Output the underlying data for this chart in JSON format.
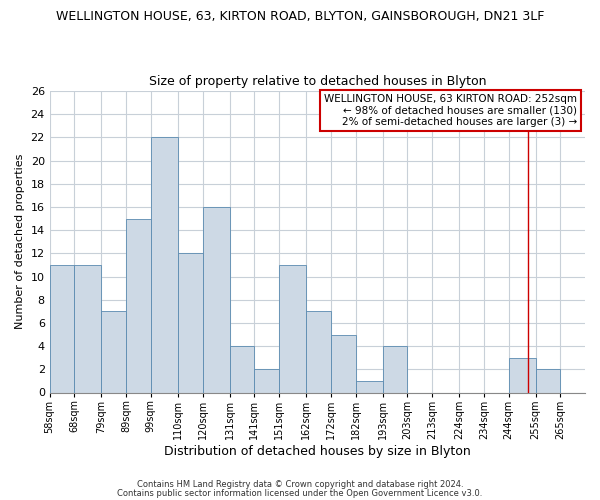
{
  "title_line1": "WELLINGTON HOUSE, 63, KIRTON ROAD, BLYTON, GAINSBOROUGH, DN21 3LF",
  "title_line2": "Size of property relative to detached houses in Blyton",
  "xlabel": "Distribution of detached houses by size in Blyton",
  "ylabel": "Number of detached properties",
  "bin_labels": [
    "58sqm",
    "68sqm",
    "79sqm",
    "89sqm",
    "99sqm",
    "110sqm",
    "120sqm",
    "131sqm",
    "141sqm",
    "151sqm",
    "162sqm",
    "172sqm",
    "182sqm",
    "193sqm",
    "203sqm",
    "213sqm",
    "224sqm",
    "234sqm",
    "244sqm",
    "255sqm",
    "265sqm"
  ],
  "bar_heights": [
    11,
    11,
    7,
    15,
    22,
    12,
    16,
    4,
    2,
    11,
    7,
    5,
    1,
    4,
    0,
    0,
    0,
    0,
    3,
    2,
    0
  ],
  "bar_color": "#cdd9e5",
  "bar_edge_color": "#5a8ab0",
  "ylim": [
    0,
    26
  ],
  "yticks": [
    0,
    2,
    4,
    6,
    8,
    10,
    12,
    14,
    16,
    18,
    20,
    22,
    24,
    26
  ],
  "vline_x": 252,
  "vline_color": "#cc0000",
  "annotation_text": "WELLINGTON HOUSE, 63 KIRTON ROAD: 252sqm\n← 98% of detached houses are smaller (130)\n2% of semi-detached houses are larger (3) →",
  "annotation_box_edgecolor": "#cc0000",
  "footnote1": "Contains HM Land Registry data © Crown copyright and database right 2024.",
  "footnote2": "Contains public sector information licensed under the Open Government Licence v3.0.",
  "background_color": "#ffffff",
  "grid_color": "#c8d0d8",
  "bin_edges": [
    58,
    68,
    79,
    89,
    99,
    110,
    120,
    131,
    141,
    151,
    162,
    172,
    182,
    193,
    203,
    213,
    224,
    234,
    244,
    255,
    265
  ]
}
